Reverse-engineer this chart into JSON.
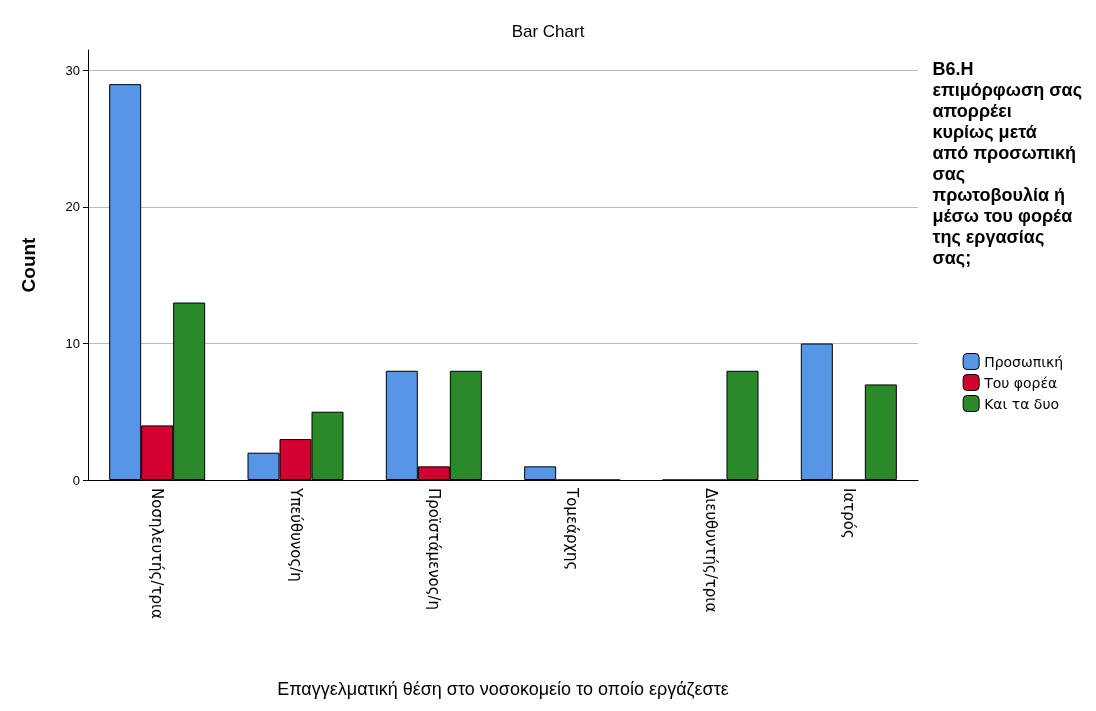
{
  "chart_data": {
    "type": "bar",
    "title": "Bar Chart",
    "xlabel": "Επαγγελματική θέση στο νοσοκομείο το οποίο εργάζεστε",
    "ylabel": "Count",
    "legend_title": "B6.Η επιμόρφωση σας απορρέει κυρίως μετά από προσωπική σας πρωτοβουλία ή μέσω του φορέα της εργασίας σας;",
    "categories": [
      "Νοσηλευτής/τρια",
      "Υπεύθυνος/η",
      "Προϊστάμενος/η",
      "Τομεάρχης",
      "Διευθυντής/τρια",
      "Ιατρός"
    ],
    "series": [
      {
        "name": "Προσωπική",
        "color": "#5596e6",
        "values": [
          29,
          2,
          8,
          1,
          0,
          10
        ]
      },
      {
        "name": "Του φορέα",
        "color": "#d30030",
        "values": [
          4,
          3,
          1,
          0,
          0,
          0
        ]
      },
      {
        "name": "Και τα δυο",
        "color": "#2a8a2a",
        "values": [
          13,
          5,
          8,
          0,
          8,
          7
        ]
      }
    ],
    "ylim": [
      0,
      31.5
    ],
    "yticks": [
      0,
      10,
      20,
      30
    ],
    "grid": "y",
    "legend": "right"
  }
}
